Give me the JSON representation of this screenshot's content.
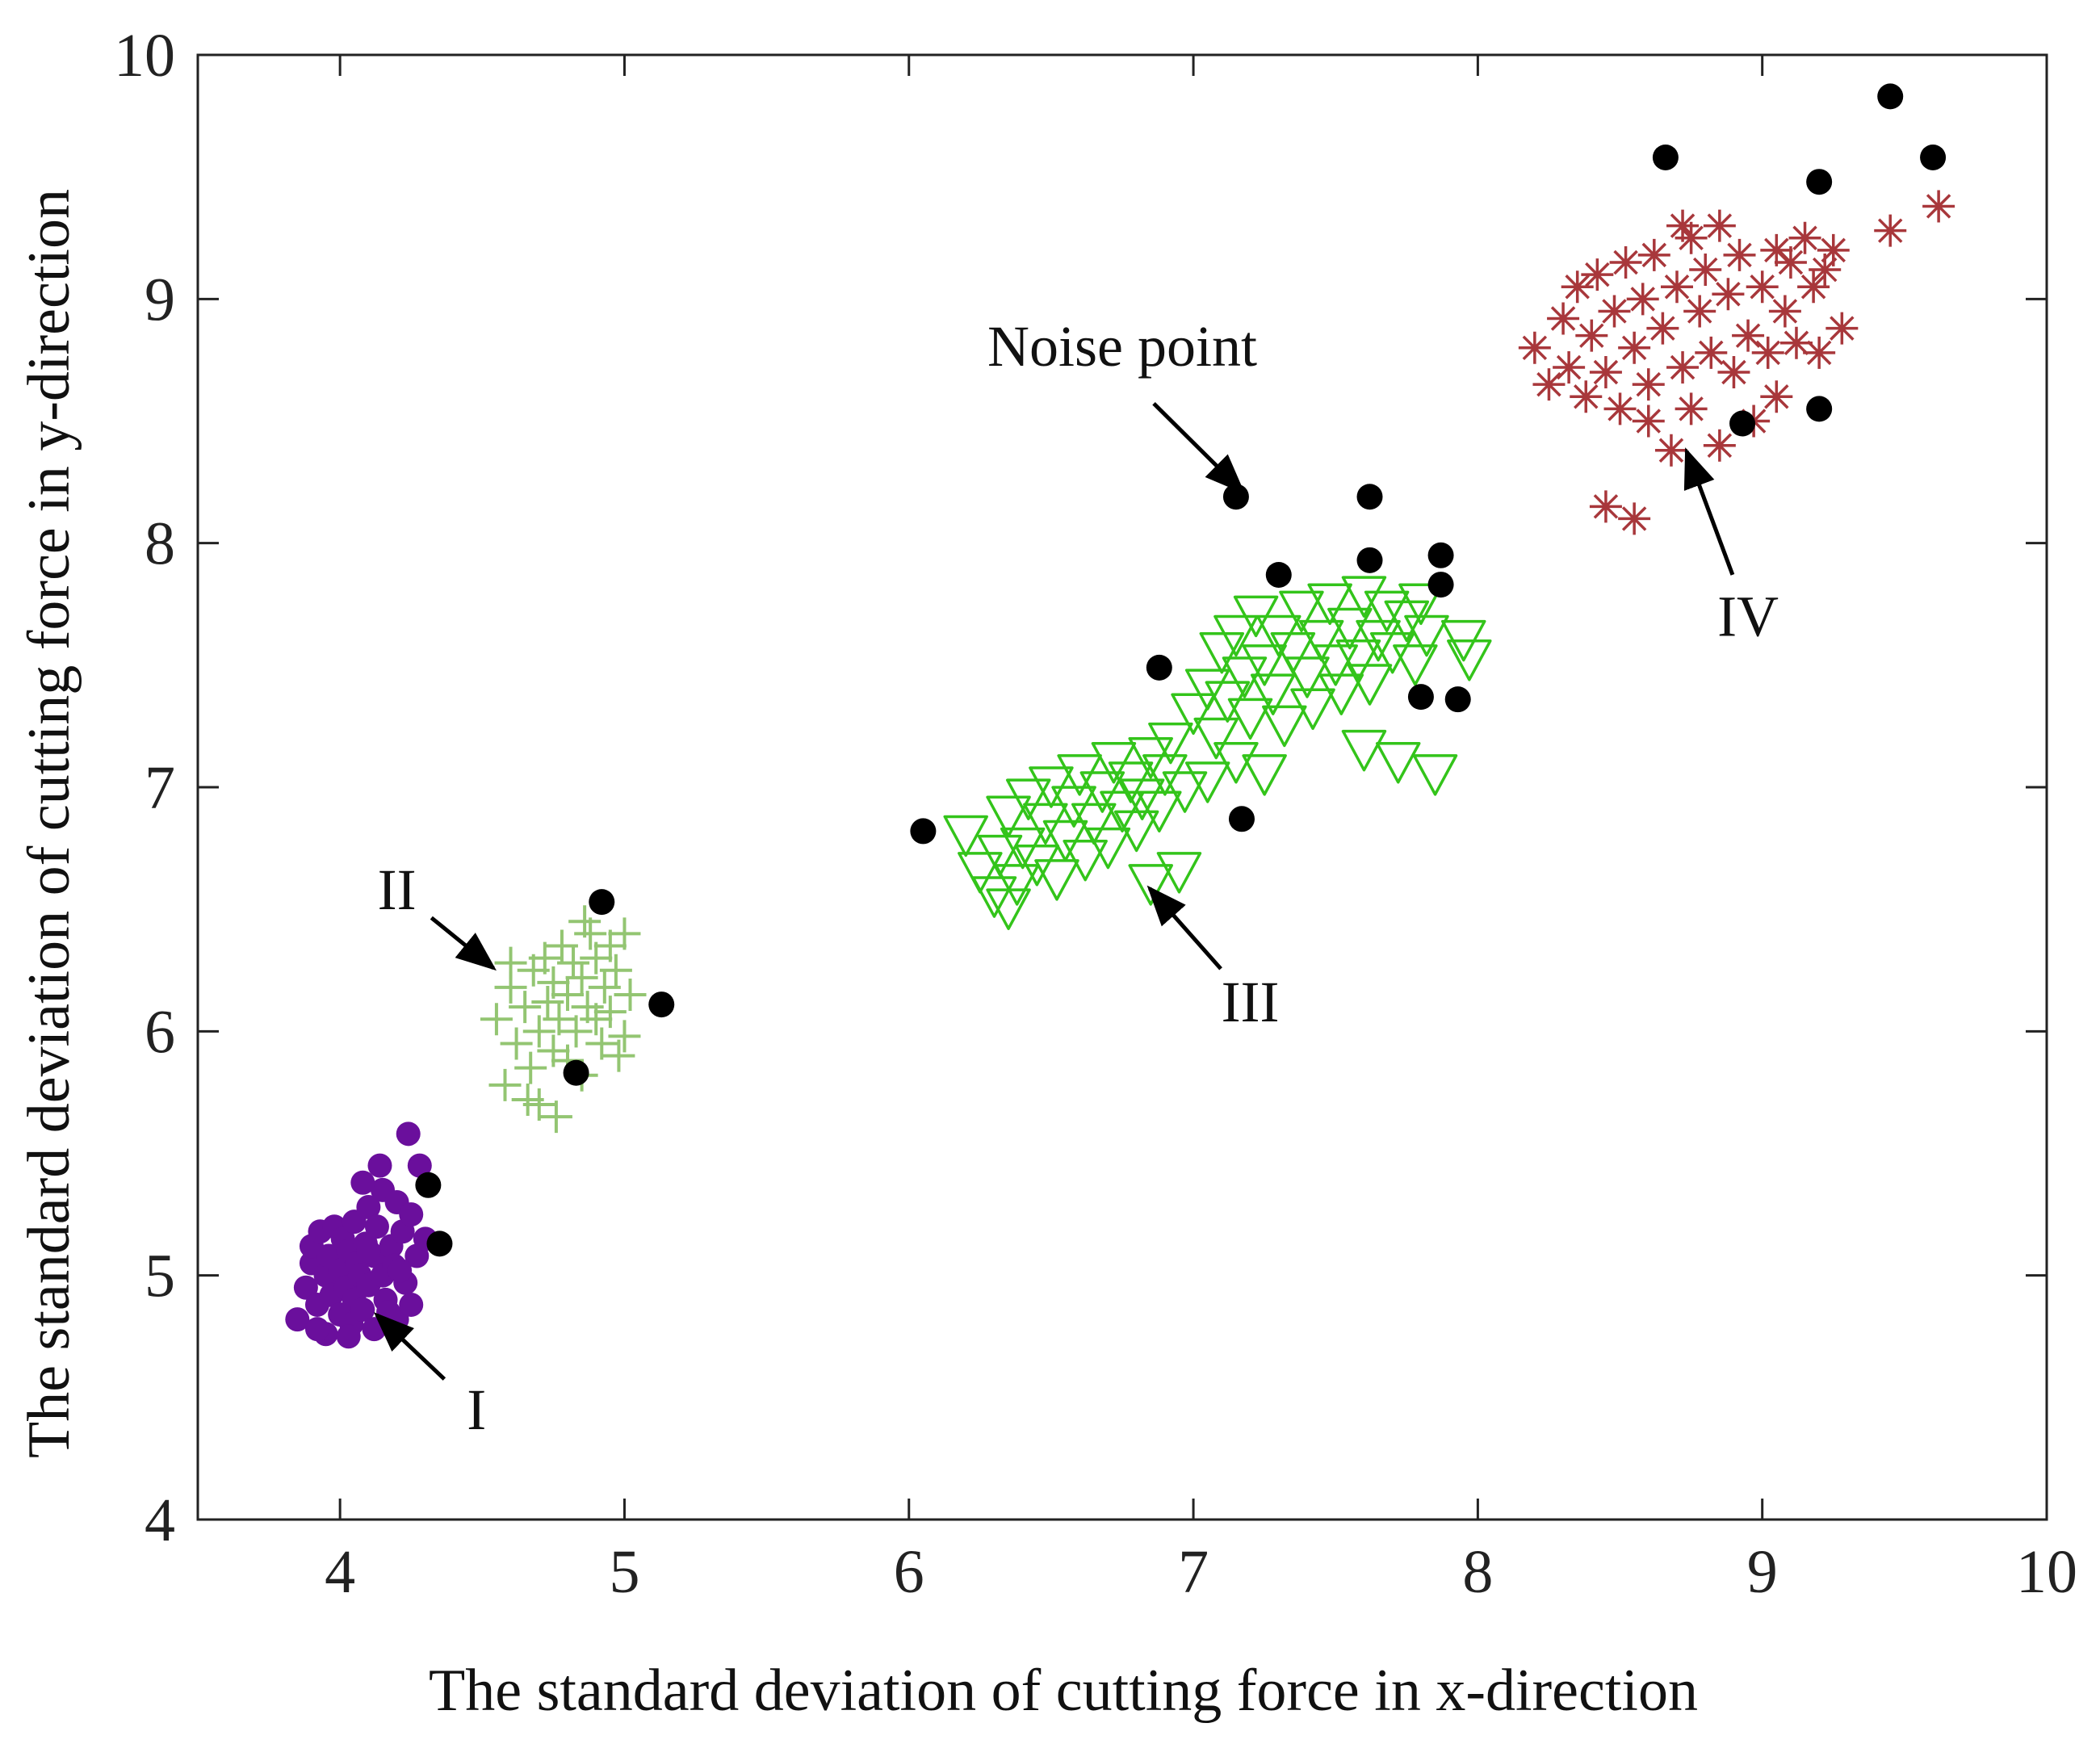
{
  "chart_data": {
    "type": "scatter",
    "title": "",
    "xlabel": "The standard deviation of cutting force in x-direction",
    "ylabel": "The standard deviation of cutting force in y-direction",
    "xlim": [
      3.5,
      10
    ],
    "ylim": [
      4,
      10
    ],
    "xticks": [
      "4",
      "5",
      "6",
      "7",
      "8",
      "9",
      "10"
    ],
    "yticks": [
      "4",
      "5",
      "6",
      "7",
      "8",
      "9",
      "10"
    ],
    "grid": false,
    "series": [
      {
        "name": "Cluster I",
        "marker": "filled-circle",
        "color": "#6a0f9c",
        "points": [
          [
            3.85,
            4.82
          ],
          [
            3.88,
            4.95
          ],
          [
            3.9,
            5.05
          ],
          [
            3.9,
            5.12
          ],
          [
            3.92,
            4.88
          ],
          [
            3.93,
            5.18
          ],
          [
            3.95,
            4.76
          ],
          [
            3.95,
            5.0
          ],
          [
            3.96,
            5.08
          ],
          [
            3.97,
            4.92
          ],
          [
            3.98,
            5.2
          ],
          [
            4.0,
            4.84
          ],
          [
            4.0,
            5.02
          ],
          [
            4.01,
            5.15
          ],
          [
            4.02,
            4.95
          ],
          [
            4.03,
            5.1
          ],
          [
            4.04,
            4.8
          ],
          [
            4.05,
            5.22
          ],
          [
            4.05,
            4.9
          ],
          [
            4.06,
            5.05
          ],
          [
            4.07,
            5.0
          ],
          [
            4.08,
            4.86
          ],
          [
            4.09,
            5.13
          ],
          [
            4.1,
            5.28
          ],
          [
            4.1,
            4.96
          ],
          [
            4.12,
            5.08
          ],
          [
            4.12,
            4.78
          ],
          [
            4.13,
            5.2
          ],
          [
            4.15,
            5.35
          ],
          [
            4.15,
            5.0
          ],
          [
            4.16,
            4.9
          ],
          [
            4.18,
            5.12
          ],
          [
            4.19,
            5.04
          ],
          [
            4.2,
            5.3
          ],
          [
            4.2,
            4.82
          ],
          [
            4.22,
            5.18
          ],
          [
            4.23,
            4.97
          ],
          [
            4.25,
            5.25
          ],
          [
            4.27,
            5.08
          ],
          [
            4.28,
            5.45
          ],
          [
            4.25,
            4.88
          ],
          [
            4.3,
            5.15
          ],
          [
            4.24,
            5.58
          ],
          [
            4.14,
            5.45
          ],
          [
            4.08,
            5.38
          ],
          [
            3.92,
            4.78
          ],
          [
            4.03,
            4.75
          ],
          [
            4.17,
            4.85
          ],
          [
            4.21,
            5.02
          ],
          [
            4.1,
            5.1
          ]
        ]
      },
      {
        "name": "Cluster II",
        "marker": "plus",
        "color": "#93c572",
        "points": [
          [
            4.55,
            6.05
          ],
          [
            4.58,
            5.78
          ],
          [
            4.6,
            6.18
          ],
          [
            4.62,
            5.95
          ],
          [
            4.65,
            6.1
          ],
          [
            4.67,
            5.85
          ],
          [
            4.68,
            6.25
          ],
          [
            4.7,
            6.0
          ],
          [
            4.7,
            5.7
          ],
          [
            4.72,
            6.3
          ],
          [
            4.73,
            6.12
          ],
          [
            4.75,
            5.92
          ],
          [
            4.75,
            6.2
          ],
          [
            4.77,
            6.05
          ],
          [
            4.78,
            6.35
          ],
          [
            4.8,
            5.88
          ],
          [
            4.8,
            6.15
          ],
          [
            4.82,
            6.28
          ],
          [
            4.83,
            6.0
          ],
          [
            4.85,
            6.22
          ],
          [
            4.85,
            5.82
          ],
          [
            4.87,
            6.1
          ],
          [
            4.88,
            6.4
          ],
          [
            4.9,
            6.05
          ],
          [
            4.9,
            6.3
          ],
          [
            4.92,
            5.95
          ],
          [
            4.93,
            6.18
          ],
          [
            4.95,
            6.35
          ],
          [
            4.95,
            6.08
          ],
          [
            4.97,
            6.25
          ],
          [
            5.0,
            6.4
          ],
          [
            5.0,
            5.98
          ],
          [
            5.02,
            6.15
          ],
          [
            4.6,
            6.28
          ],
          [
            4.66,
            5.72
          ],
          [
            4.76,
            5.65
          ],
          [
            4.98,
            5.9
          ],
          [
            4.86,
            6.45
          ]
        ]
      },
      {
        "name": "Cluster III",
        "marker": "triangle-down-open",
        "color": "#33c41a",
        "points": [
          [
            6.2,
            6.8
          ],
          [
            6.25,
            6.65
          ],
          [
            6.3,
            6.55
          ],
          [
            6.32,
            6.72
          ],
          [
            6.35,
            6.88
          ],
          [
            6.38,
            6.6
          ],
          [
            6.4,
            6.75
          ],
          [
            6.42,
            6.95
          ],
          [
            6.45,
            6.68
          ],
          [
            6.48,
            6.85
          ],
          [
            6.5,
            7.0
          ],
          [
            6.52,
            6.62
          ],
          [
            6.55,
            6.78
          ],
          [
            6.58,
            6.92
          ],
          [
            6.6,
            7.05
          ],
          [
            6.62,
            6.7
          ],
          [
            6.65,
            6.85
          ],
          [
            6.68,
            6.98
          ],
          [
            6.7,
            6.75
          ],
          [
            6.72,
            7.1
          ],
          [
            6.75,
            6.9
          ],
          [
            6.78,
            7.02
          ],
          [
            6.8,
            6.82
          ],
          [
            6.82,
            6.95
          ],
          [
            6.85,
            7.12
          ],
          [
            6.88,
            6.9
          ],
          [
            6.9,
            7.05
          ],
          [
            6.95,
            6.65
          ],
          [
            6.92,
            7.18
          ],
          [
            6.97,
            6.98
          ],
          [
            7.0,
            7.3
          ],
          [
            7.05,
            7.4
          ],
          [
            7.08,
            7.2
          ],
          [
            7.1,
            7.55
          ],
          [
            7.12,
            7.35
          ],
          [
            7.15,
            7.62
          ],
          [
            7.18,
            7.45
          ],
          [
            7.2,
            7.28
          ],
          [
            7.22,
            7.7
          ],
          [
            7.25,
            7.5
          ],
          [
            7.28,
            7.38
          ],
          [
            7.3,
            7.62
          ],
          [
            7.32,
            7.25
          ],
          [
            7.35,
            7.55
          ],
          [
            7.38,
            7.72
          ],
          [
            7.4,
            7.45
          ],
          [
            7.42,
            7.32
          ],
          [
            7.45,
            7.6
          ],
          [
            7.48,
            7.75
          ],
          [
            7.5,
            7.5
          ],
          [
            7.52,
            7.38
          ],
          [
            7.55,
            7.65
          ],
          [
            7.58,
            7.52
          ],
          [
            7.6,
            7.78
          ],
          [
            7.62,
            7.42
          ],
          [
            7.65,
            7.6
          ],
          [
            7.68,
            7.72
          ],
          [
            7.7,
            7.55
          ],
          [
            7.72,
            7.1
          ],
          [
            7.75,
            7.68
          ],
          [
            7.78,
            7.5
          ],
          [
            7.8,
            7.75
          ],
          [
            7.82,
            7.62
          ],
          [
            7.85,
            7.05
          ],
          [
            7.95,
            7.6
          ],
          [
            7.97,
            7.52
          ],
          [
            7.15,
            7.1
          ],
          [
            7.25,
            7.05
          ],
          [
            7.6,
            7.15
          ],
          [
            6.85,
            6.6
          ],
          [
            7.05,
            7.02
          ],
          [
            6.35,
            6.5
          ]
        ]
      },
      {
        "name": "Cluster IV",
        "marker": "asterisk",
        "color": "#a8373b",
        "points": [
          [
            8.2,
            8.8
          ],
          [
            8.25,
            8.65
          ],
          [
            8.3,
            8.92
          ],
          [
            8.32,
            8.72
          ],
          [
            8.35,
            9.05
          ],
          [
            8.38,
            8.6
          ],
          [
            8.4,
            8.85
          ],
          [
            8.42,
            9.1
          ],
          [
            8.45,
            8.7
          ],
          [
            8.45,
            8.15
          ],
          [
            8.48,
            8.95
          ],
          [
            8.5,
            8.55
          ],
          [
            8.52,
            9.15
          ],
          [
            8.55,
            8.8
          ],
          [
            8.55,
            8.1
          ],
          [
            8.58,
            9.0
          ],
          [
            8.6,
            8.65
          ],
          [
            8.62,
            9.18
          ],
          [
            8.65,
            8.88
          ],
          [
            8.68,
            8.38
          ],
          [
            8.7,
            9.05
          ],
          [
            8.72,
            8.72
          ],
          [
            8.75,
            9.25
          ],
          [
            8.75,
            8.55
          ],
          [
            8.78,
            8.95
          ],
          [
            8.8,
            9.12
          ],
          [
            8.82,
            8.78
          ],
          [
            8.85,
            9.3
          ],
          [
            8.85,
            8.4
          ],
          [
            8.88,
            9.02
          ],
          [
            8.9,
            8.7
          ],
          [
            8.92,
            9.18
          ],
          [
            8.95,
            8.85
          ],
          [
            8.97,
            8.5
          ],
          [
            9.0,
            9.05
          ],
          [
            9.02,
            8.78
          ],
          [
            9.05,
            9.2
          ],
          [
            9.08,
            8.95
          ],
          [
            9.1,
            9.15
          ],
          [
            9.12,
            8.82
          ],
          [
            9.15,
            9.25
          ],
          [
            9.18,
            9.05
          ],
          [
            9.2,
            8.78
          ],
          [
            9.22,
            9.12
          ],
          [
            9.25,
            9.2
          ],
          [
            9.28,
            8.88
          ],
          [
            9.45,
            9.28
          ],
          [
            9.62,
            9.38
          ],
          [
            8.72,
            9.3
          ],
          [
            8.6,
            8.5
          ],
          [
            9.05,
            8.6
          ]
        ]
      },
      {
        "name": "Noise point",
        "marker": "filled-circle",
        "color": "#000000",
        "points": [
          [
            4.31,
            5.37
          ],
          [
            4.35,
            5.13
          ],
          [
            4.83,
            5.83
          ],
          [
            4.92,
            6.53
          ],
          [
            5.13,
            6.11
          ],
          [
            6.05,
            6.82
          ],
          [
            6.88,
            7.49
          ],
          [
            7.15,
            8.19
          ],
          [
            7.17,
            6.87
          ],
          [
            7.3,
            7.87
          ],
          [
            7.62,
            7.93
          ],
          [
            7.62,
            8.19
          ],
          [
            7.8,
            7.37
          ],
          [
            7.87,
            7.95
          ],
          [
            7.87,
            7.83
          ],
          [
            7.93,
            7.36
          ],
          [
            8.66,
            9.58
          ],
          [
            8.93,
            8.49
          ],
          [
            9.2,
            9.48
          ],
          [
            9.2,
            8.55
          ],
          [
            9.45,
            9.83
          ],
          [
            9.6,
            9.58
          ]
        ]
      }
    ],
    "annotations": [
      {
        "text": "Noise point",
        "at": [
          7.2,
          8.18
        ],
        "label_pos": [
          6.75,
          8.7
        ]
      },
      {
        "text": "I",
        "at": [
          4.1,
          4.87
        ],
        "label_pos": [
          4.48,
          4.45
        ]
      },
      {
        "text": "II",
        "at": [
          4.57,
          6.23
        ],
        "label_pos": [
          4.2,
          6.58
        ]
      },
      {
        "text": "III",
        "at": [
          6.82,
          6.62
        ],
        "label_pos": [
          7.2,
          6.12
        ]
      },
      {
        "text": "IV",
        "at": [
          8.72,
          8.42
        ],
        "label_pos": [
          8.95,
          7.7
        ]
      }
    ]
  }
}
